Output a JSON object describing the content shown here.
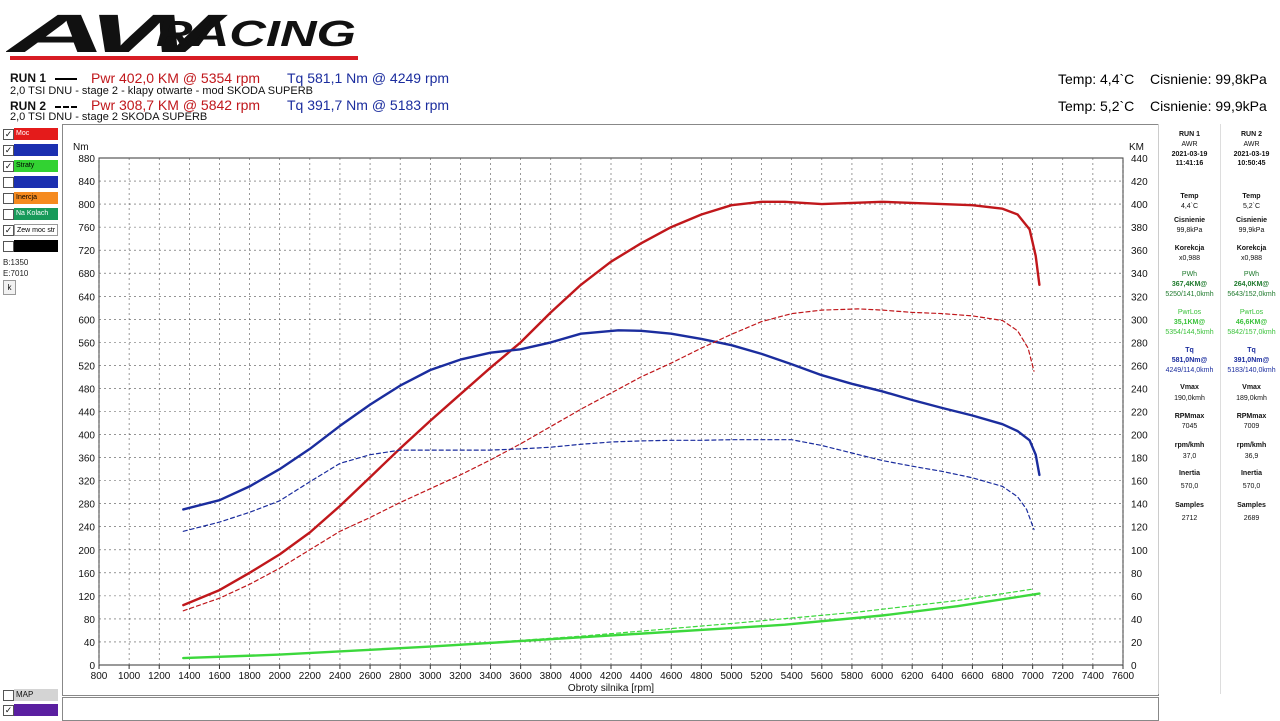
{
  "logo": {
    "text": "AWRACING"
  },
  "runs": [
    {
      "label": "RUN 1",
      "pwr": "Pwr  402,0 KM @ 5354 rpm",
      "tq": "Tq 581,1 Nm @ 4249 rpm",
      "desc": "2,0 TSI DNU - stage 2 - klapy otwarte - mod SKODA SUPERB",
      "temp": "Temp: 4,4`C",
      "pressure": "Cisnienie: 99,8kPa"
    },
    {
      "label": "RUN 2",
      "pwr": "Pwr  308,7 KM @ 5842 rpm",
      "tq": "Tq 391,7 Nm @ 5183 rpm",
      "desc": "2,0 TSI DNU - stage 2 SKODA SUPERB",
      "temp": "Temp: 5,2`C",
      "pressure": "Cisnienie: 99,9kPa"
    }
  ],
  "left_panel": {
    "checkboxes": [
      {
        "label": "Moc",
        "color": "#e41b1b",
        "checked": true
      },
      {
        "label": "",
        "color": "#1b2fb0",
        "checked": true
      },
      {
        "label": "Straty",
        "color": "#32d232",
        "checked": true
      },
      {
        "label": "",
        "color": "#1b2fb0",
        "checked": false
      },
      {
        "label": "Inercja",
        "color": "#f58a1f",
        "checked": false
      },
      {
        "label": "Na Kolach",
        "color": "#179a5a",
        "checked": false
      },
      {
        "label": "Zew moc str",
        "color": "#ffffff",
        "checked": true
      },
      {
        "label": "",
        "color": "#000000",
        "checked": false
      }
    ],
    "b_value": "B:1350",
    "e_value": "E:7010",
    "k_button": "k",
    "map_label": "MAP",
    "bottom_check": {
      "label": "",
      "color": "#5a1fa0",
      "checked": true
    }
  },
  "colors": {
    "power": "#c0171b",
    "torque": "#1b2d9e",
    "loss": "#3cd83c"
  },
  "right_panel": {
    "run1": {
      "header": [
        "RUN 1",
        "AWR",
        "2021-03-19",
        "11:41:16"
      ],
      "temp_label": "Temp",
      "temp": "4,4`C",
      "cis_label": "Cisnienie",
      "cis": "99,8kPa",
      "kor_label": "Korekcja",
      "kor": "x0,988",
      "pwh_label": "PWh",
      "pwh": "367,4KM@",
      "pwh_at": "5250/141,0kmh",
      "pwrlos_label": "PwrLos",
      "pwrlos": "35,1KM@",
      "pwrlos_at": "5354/144,5kmh",
      "tq_label": "Tq",
      "tq": "581,0Nm@",
      "tq_at": "4249/114,0kmh",
      "vmax_label": "Vmax",
      "vmax": "190,0kmh",
      "rpmmax_label": "RPMmax",
      "rpmmax": "7045",
      "rpmkmh_label": "rpm/kmh",
      "rpmkmh": "37,0",
      "inertia_label": "Inertia",
      "inertia": "570,0",
      "samples_label": "Samples",
      "samples": "2712"
    },
    "run2": {
      "header": [
        "RUN 2",
        "AWR",
        "2021-03-19",
        "10:50:45"
      ],
      "temp_label": "Temp",
      "temp": "5,2`C",
      "cis_label": "Cisnienie",
      "cis": "99,9kPa",
      "kor_label": "Korekcja",
      "kor": "x0,988",
      "pwh_label": "PWh",
      "pwh": "264,0KM@",
      "pwh_at": "5643/152,0kmh",
      "pwrlos_label": "PwrLos",
      "pwrlos": "46,6KM@",
      "pwrlos_at": "5842/157,0kmh",
      "tq_label": "Tq",
      "tq": "391,0Nm@",
      "tq_at": "5183/140,0kmh",
      "vmax_label": "Vmax",
      "vmax": "189,0kmh",
      "rpmmax_label": "RPMmax",
      "rpmmax": "7009",
      "rpmkmh_label": "rpm/kmh",
      "rpmkmh": "36,9",
      "inertia_label": "Inertia",
      "inertia": "570,0",
      "samples_label": "Samples",
      "samples": "2689"
    }
  },
  "chart_data": {
    "type": "line",
    "xlabel": "Obroty silnika [rpm]",
    "ylabel": "Nm",
    "y2label": "KM",
    "xlim": [
      800,
      7600
    ],
    "ylim": [
      0,
      880
    ],
    "y2lim": [
      0,
      440
    ],
    "x_ticks": [
      800,
      1000,
      1200,
      1400,
      1600,
      1800,
      2000,
      2200,
      2400,
      2600,
      2800,
      3000,
      3200,
      3400,
      3600,
      3800,
      4000,
      4200,
      4400,
      4600,
      4800,
      5000,
      5200,
      5400,
      5600,
      5800,
      6000,
      6200,
      6400,
      6600,
      6800,
      7000,
      7200,
      7400,
      7600
    ],
    "y_ticks": [
      0,
      40,
      80,
      120,
      160,
      200,
      240,
      280,
      320,
      360,
      400,
      440,
      480,
      520,
      560,
      600,
      640,
      680,
      720,
      760,
      800,
      840,
      880
    ],
    "y2_ticks": [
      0,
      20,
      40,
      60,
      80,
      100,
      120,
      140,
      160,
      180,
      200,
      220,
      240,
      260,
      280,
      300,
      320,
      340,
      360,
      380,
      400,
      420,
      440
    ],
    "grid": true,
    "series": [
      {
        "run": "RUN 1",
        "kind": "power",
        "axis": "y2",
        "dashed": false,
        "x": [
          1360,
          1600,
          1800,
          2000,
          2200,
          2400,
          2600,
          2800,
          3000,
          3200,
          3400,
          3600,
          3800,
          4000,
          4200,
          4400,
          4600,
          4800,
          5000,
          5200,
          5354,
          5600,
          5800,
          6000,
          6200,
          6400,
          6600,
          6800,
          6900,
          6980,
          7020,
          7045
        ],
        "y": [
          52,
          65,
          80,
          96,
          115,
          138,
          163,
          188,
          212,
          235,
          258,
          280,
          306,
          330,
          350,
          366,
          380,
          391,
          399,
          402,
          402,
          400,
          401,
          402,
          401,
          400,
          399,
          396,
          391,
          378,
          355,
          330
        ]
      },
      {
        "run": "RUN 1",
        "kind": "torque",
        "axis": "y",
        "dashed": false,
        "x": [
          1360,
          1600,
          1800,
          2000,
          2200,
          2400,
          2600,
          2800,
          3000,
          3200,
          3400,
          3600,
          3800,
          4000,
          4249,
          4400,
          4600,
          4800,
          5000,
          5200,
          5400,
          5600,
          5800,
          6000,
          6200,
          6400,
          6600,
          6800,
          6900,
          6980,
          7020,
          7045
        ],
        "y": [
          270,
          286,
          310,
          340,
          375,
          415,
          452,
          485,
          512,
          530,
          542,
          548,
          560,
          575,
          581,
          580,
          575,
          566,
          555,
          540,
          522,
          503,
          488,
          475,
          460,
          446,
          433,
          418,
          406,
          390,
          365,
          330
        ]
      },
      {
        "run": "RUN 1",
        "kind": "loss",
        "axis": "y2",
        "dashed": false,
        "x": [
          1360,
          2000,
          3000,
          4000,
          5000,
          5354,
          6000,
          6500,
          7045
        ],
        "y": [
          6,
          9,
          16,
          24,
          32,
          35,
          43,
          51,
          62
        ]
      },
      {
        "run": "RUN 2",
        "kind": "power",
        "axis": "y2",
        "dashed": true,
        "x": [
          1360,
          1600,
          1800,
          2000,
          2200,
          2400,
          2600,
          2800,
          3000,
          3200,
          3400,
          3600,
          3800,
          4000,
          4200,
          4400,
          4600,
          4800,
          5000,
          5200,
          5400,
          5600,
          5842,
          6000,
          6200,
          6400,
          6600,
          6800,
          6900,
          6970,
          7009
        ],
        "y": [
          47,
          58,
          70,
          84,
          100,
          116,
          128,
          141,
          153,
          165,
          178,
          192,
          207,
          222,
          236,
          250,
          262,
          275,
          287,
          298,
          305,
          308,
          309,
          308,
          306,
          305,
          303,
          299,
          290,
          275,
          255
        ]
      },
      {
        "run": "RUN 2",
        "kind": "torque",
        "axis": "y",
        "dashed": true,
        "x": [
          1360,
          1600,
          1800,
          2000,
          2200,
          2400,
          2600,
          2800,
          3000,
          3200,
          3400,
          3600,
          3800,
          4000,
          4200,
          4400,
          4600,
          4800,
          5000,
          5183,
          5400,
          5600,
          5800,
          6000,
          6200,
          6400,
          6600,
          6800,
          6900,
          6960,
          7009
        ],
        "y": [
          232,
          248,
          265,
          285,
          318,
          350,
          365,
          373,
          373,
          373,
          373,
          375,
          378,
          383,
          387,
          389,
          390,
          390,
          391,
          391,
          391,
          381,
          368,
          355,
          345,
          336,
          325,
          310,
          292,
          270,
          235
        ]
      },
      {
        "run": "RUN 2",
        "kind": "loss",
        "axis": "y2",
        "dashed": true,
        "x": [
          1360,
          2000,
          3000,
          4000,
          5000,
          5842,
          6500,
          7009
        ],
        "y": [
          6,
          9,
          16,
          25,
          36,
          46,
          56,
          66
        ]
      }
    ]
  }
}
